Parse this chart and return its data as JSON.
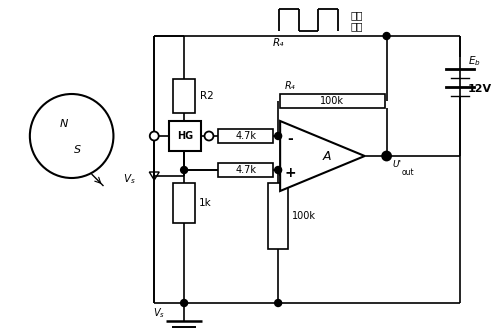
{
  "bg_color": "#ffffff",
  "line_color": "#000000",
  "fig_width": 4.98,
  "fig_height": 3.31,
  "dpi": 100,
  "xlim": [
    0,
    498
  ],
  "ylim": [
    0,
    331
  ]
}
